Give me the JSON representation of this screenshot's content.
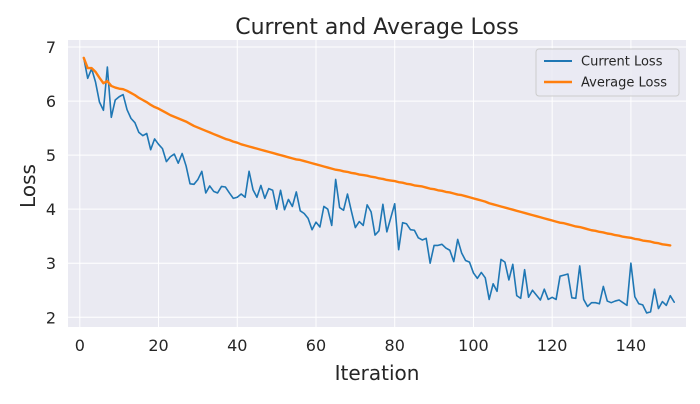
{
  "chart_data": {
    "type": "line",
    "title": "Current and Average Loss",
    "xlabel": "Iteration",
    "ylabel": "Loss",
    "xlim": [
      -3,
      154
    ],
    "ylim": [
      1.82,
      7.13
    ],
    "x_ticks": [
      0,
      20,
      40,
      60,
      80,
      100,
      120,
      140
    ],
    "y_ticks": [
      2,
      3,
      4,
      5,
      6,
      7
    ],
    "grid": true,
    "legend_position": "top-right",
    "colors": {
      "background": "#eaeaf2",
      "grid": "#ffffff",
      "current": "#1f77b4",
      "average": "#ff7f0e"
    },
    "series": [
      {
        "name": "Current Loss",
        "color": "#1f77b4",
        "x_start": 1,
        "values": [
          6.8,
          6.42,
          6.6,
          6.35,
          5.98,
          5.83,
          6.63,
          5.7,
          6.02,
          6.08,
          6.12,
          5.84,
          5.68,
          5.6,
          5.42,
          5.36,
          5.4,
          5.1,
          5.3,
          5.2,
          5.12,
          4.88,
          4.97,
          5.02,
          4.85,
          5.03,
          4.8,
          4.47,
          4.46,
          4.55,
          4.7,
          4.3,
          4.43,
          4.33,
          4.3,
          4.42,
          4.41,
          4.3,
          4.2,
          4.22,
          4.28,
          4.22,
          4.7,
          4.36,
          4.22,
          4.44,
          4.2,
          4.38,
          4.35,
          4.0,
          4.35,
          3.99,
          4.18,
          4.05,
          4.32,
          3.97,
          3.92,
          3.83,
          3.62,
          3.76,
          3.67,
          4.05,
          4.0,
          3.7,
          4.55,
          4.03,
          3.98,
          4.28,
          3.96,
          3.66,
          3.77,
          3.7,
          4.08,
          3.95,
          3.52,
          3.6,
          4.09,
          3.58,
          3.84,
          4.1,
          3.25,
          3.75,
          3.73,
          3.62,
          3.61,
          3.47,
          3.43,
          3.46,
          3.0,
          3.33,
          3.33,
          3.35,
          3.28,
          3.24,
          3.03,
          3.44,
          3.19,
          3.05,
          3.02,
          2.82,
          2.72,
          2.83,
          2.73,
          2.33,
          2.62,
          2.48,
          3.07,
          3.02,
          2.69,
          2.98,
          2.4,
          2.35,
          2.88,
          2.37,
          2.5,
          2.41,
          2.32,
          2.52,
          2.33,
          2.37,
          2.33,
          2.76,
          2.78,
          2.8,
          2.36,
          2.35,
          2.95,
          2.33,
          2.2,
          2.27,
          2.27,
          2.25,
          2.57,
          2.3,
          2.27,
          2.3,
          2.32,
          2.27,
          2.22,
          3.0,
          2.38,
          2.25,
          2.23,
          2.08,
          2.1,
          2.52,
          2.16,
          2.29,
          2.22,
          2.4,
          2.28
        ]
      },
      {
        "name": "Average Loss",
        "color": "#ff7f0e",
        "x_start": 1,
        "values": [
          6.8,
          6.61,
          6.61,
          6.54,
          6.43,
          6.33,
          6.37,
          6.28,
          6.25,
          6.23,
          6.22,
          6.19,
          6.15,
          6.11,
          6.06,
          6.02,
          5.98,
          5.93,
          5.89,
          5.86,
          5.82,
          5.78,
          5.74,
          5.71,
          5.68,
          5.65,
          5.62,
          5.58,
          5.54,
          5.51,
          5.48,
          5.45,
          5.42,
          5.39,
          5.36,
          5.33,
          5.3,
          5.28,
          5.25,
          5.23,
          5.2,
          5.18,
          5.16,
          5.14,
          5.12,
          5.1,
          5.08,
          5.06,
          5.04,
          5.02,
          5.0,
          4.98,
          4.96,
          4.94,
          4.92,
          4.91,
          4.89,
          4.87,
          4.85,
          4.83,
          4.81,
          4.79,
          4.77,
          4.75,
          4.73,
          4.72,
          4.7,
          4.69,
          4.67,
          4.66,
          4.64,
          4.63,
          4.62,
          4.6,
          4.59,
          4.57,
          4.56,
          4.54,
          4.53,
          4.52,
          4.5,
          4.49,
          4.47,
          4.46,
          4.44,
          4.43,
          4.42,
          4.4,
          4.38,
          4.37,
          4.35,
          4.34,
          4.32,
          4.31,
          4.29,
          4.27,
          4.26,
          4.24,
          4.22,
          4.2,
          4.18,
          4.16,
          4.14,
          4.11,
          4.09,
          4.07,
          4.05,
          4.03,
          4.01,
          3.99,
          3.97,
          3.95,
          3.93,
          3.91,
          3.89,
          3.87,
          3.85,
          3.83,
          3.81,
          3.79,
          3.77,
          3.75,
          3.74,
          3.72,
          3.7,
          3.68,
          3.67,
          3.65,
          3.63,
          3.61,
          3.6,
          3.58,
          3.57,
          3.55,
          3.54,
          3.52,
          3.51,
          3.49,
          3.48,
          3.47,
          3.45,
          3.44,
          3.42,
          3.41,
          3.4,
          3.38,
          3.37,
          3.35,
          3.34,
          3.33
        ]
      }
    ]
  }
}
